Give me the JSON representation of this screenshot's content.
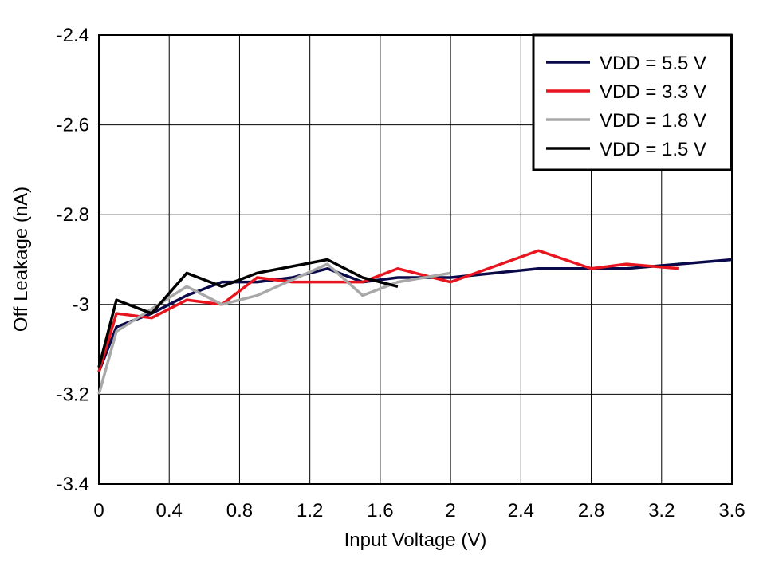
{
  "chart_data": {
    "type": "line",
    "x_label": "Input Voltage (V)",
    "y_label": "Off Leakage (nA)",
    "xlim": [
      0,
      3.6
    ],
    "xticks": [
      0,
      0.4,
      0.8,
      1.2,
      1.6,
      2,
      2.4,
      2.8,
      3.2,
      3.6
    ],
    "ylim": [
      -3.4,
      -2.4
    ],
    "yticks": [
      -3.4,
      -3.2,
      -3,
      -2.8,
      -2.6,
      -2.4
    ],
    "grid": true,
    "legend": "upper right",
    "series": [
      {
        "name": "VDD = 5.5 V",
        "color": "#0a0a4a",
        "x": [
          0,
          0.1,
          0.3,
          0.5,
          0.7,
          0.9,
          1.1,
          1.3,
          1.5,
          1.7,
          2.0,
          2.5,
          3.0,
          3.3,
          3.6
        ],
        "values": [
          -3.15,
          -3.05,
          -3.02,
          -2.98,
          -2.95,
          -2.95,
          -2.94,
          -2.92,
          -2.95,
          -2.94,
          -2.94,
          -2.92,
          -2.92,
          -2.91,
          -2.9
        ]
      },
      {
        "name": "VDD = 3.3 V",
        "color": "#e8141e",
        "x": [
          0,
          0.1,
          0.3,
          0.5,
          0.7,
          0.9,
          1.1,
          1.3,
          1.5,
          1.7,
          2.0,
          2.5,
          2.8,
          3.0,
          3.3
        ],
        "values": [
          -3.15,
          -3.02,
          -3.03,
          -2.99,
          -3.0,
          -2.94,
          -2.95,
          -2.95,
          -2.95,
          -2.92,
          -2.95,
          -2.88,
          -2.92,
          -2.91,
          -2.92
        ]
      },
      {
        "name": "VDD = 1.8 V",
        "color": "#a8a8a8",
        "x": [
          0,
          0.1,
          0.3,
          0.5,
          0.7,
          0.9,
          1.3,
          1.5,
          1.7,
          2.0
        ],
        "values": [
          -3.2,
          -3.06,
          -3.01,
          -2.96,
          -3.0,
          -2.98,
          -2.91,
          -2.98,
          -2.95,
          -2.93
        ]
      },
      {
        "name": "VDD = 1.5 V",
        "color": "#000000",
        "x": [
          0,
          0.1,
          0.3,
          0.5,
          0.7,
          0.9,
          1.3,
          1.5,
          1.7
        ],
        "values": [
          -3.14,
          -2.99,
          -3.02,
          -2.93,
          -2.96,
          -2.93,
          -2.9,
          -2.94,
          -2.96
        ]
      }
    ]
  }
}
